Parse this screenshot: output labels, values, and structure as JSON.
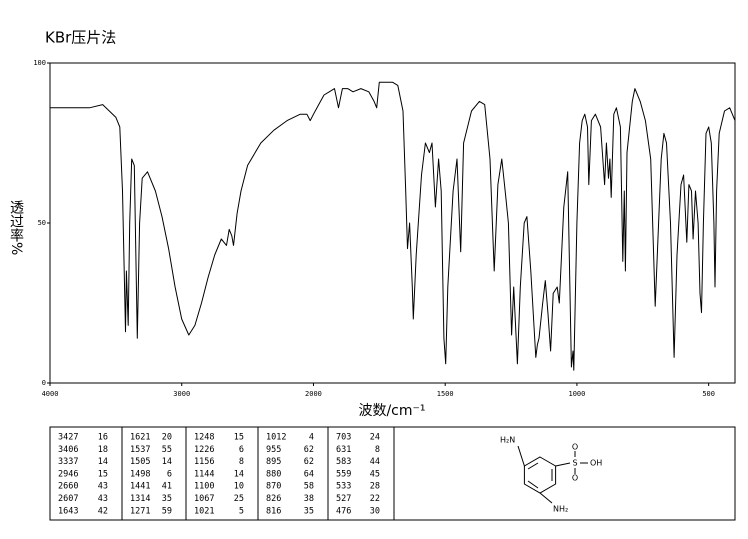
{
  "chart_data": {
    "type": "line",
    "title": "KBr压片法",
    "xlabel": "波数/cm⁻¹",
    "ylabel": "透过率%",
    "xlim": [
      4000,
      400
    ],
    "xticks": [
      4000,
      3000,
      2000,
      1500,
      1000,
      500
    ],
    "ylim": [
      0,
      100
    ],
    "yticks": [
      0,
      50,
      100
    ],
    "x": [
      4000,
      3900,
      3700,
      3600,
      3500,
      3470,
      3450,
      3427,
      3420,
      3406,
      3395,
      3380,
      3360,
      3337,
      3320,
      3300,
      3260,
      3200,
      3150,
      3100,
      3050,
      3000,
      2946,
      2900,
      2850,
      2800,
      2750,
      2700,
      2660,
      2640,
      2620,
      2607,
      2580,
      2550,
      2500,
      2400,
      2300,
      2200,
      2100,
      2050,
      2025,
      2000,
      1980,
      1960,
      1940,
      1920,
      1905,
      1890,
      1870,
      1850,
      1820,
      1790,
      1770,
      1760,
      1750,
      1720,
      1700,
      1680,
      1660,
      1650,
      1643,
      1635,
      1625,
      1621,
      1610,
      1590,
      1575,
      1560,
      1550,
      1537,
      1525,
      1515,
      1505,
      1498,
      1490,
      1470,
      1455,
      1441,
      1430,
      1400,
      1370,
      1350,
      1330,
      1314,
      1300,
      1285,
      1271,
      1260,
      1248,
      1240,
      1226,
      1215,
      1200,
      1190,
      1175,
      1156,
      1150,
      1144,
      1130,
      1120,
      1110,
      1100,
      1090,
      1075,
      1067,
      1050,
      1035,
      1021,
      1015,
      1012,
      1000,
      990,
      980,
      970,
      960,
      955,
      945,
      930,
      910,
      895,
      888,
      880,
      875,
      870,
      860,
      850,
      835,
      826,
      820,
      816,
      810,
      790,
      780,
      760,
      740,
      720,
      703,
      695,
      680,
      670,
      660,
      645,
      631,
      620,
      605,
      595,
      583,
      575,
      565,
      559,
      550,
      540,
      533,
      527,
      520,
      510,
      500,
      490,
      480,
      476,
      470,
      460,
      440,
      420,
      400
    ],
    "series": [
      {
        "name": "transmittance",
        "color": "#000000",
        "values": [
          86,
          86,
          86,
          87,
          83,
          80,
          60,
          16,
          35,
          18,
          50,
          70,
          68,
          14,
          50,
          64,
          66,
          60,
          52,
          42,
          30,
          20,
          15,
          18,
          25,
          33,
          40,
          45,
          43,
          48,
          46,
          43,
          53,
          60,
          68,
          75,
          79,
          82,
          84,
          84,
          82,
          84,
          87,
          90,
          91,
          92,
          86,
          92,
          92,
          91,
          92,
          91,
          88,
          86,
          94,
          94,
          94,
          93,
          85,
          60,
          42,
          50,
          30,
          20,
          40,
          65,
          75,
          72,
          75,
          55,
          70,
          60,
          14,
          6,
          30,
          60,
          70,
          41,
          75,
          85,
          88,
          87,
          70,
          35,
          62,
          70,
          59,
          50,
          15,
          30,
          6,
          30,
          50,
          52,
          35,
          8,
          12,
          14,
          25,
          32,
          22,
          10,
          28,
          30,
          25,
          55,
          66,
          5,
          10,
          4,
          50,
          75,
          82,
          84,
          80,
          62,
          82,
          84,
          80,
          62,
          75,
          64,
          70,
          58,
          84,
          86,
          80,
          38,
          60,
          35,
          72,
          88,
          92,
          88,
          82,
          70,
          24,
          40,
          70,
          78,
          75,
          50,
          8,
          40,
          62,
          65,
          44,
          62,
          60,
          45,
          60,
          50,
          28,
          22,
          50,
          78,
          80,
          75,
          50,
          30,
          60,
          78,
          85,
          86,
          82
        ]
      }
    ],
    "peak_table": [
      [
        [
          3427,
          16
        ],
        [
          3406,
          18
        ],
        [
          3337,
          14
        ],
        [
          2946,
          15
        ],
        [
          2660,
          43
        ],
        [
          2607,
          43
        ],
        [
          1643,
          42
        ]
      ],
      [
        [
          1621,
          20
        ],
        [
          1537,
          55
        ],
        [
          1505,
          14
        ],
        [
          1498,
          6
        ],
        [
          1441,
          41
        ],
        [
          1314,
          35
        ],
        [
          1271,
          59
        ]
      ],
      [
        [
          1248,
          15
        ],
        [
          1226,
          6
        ],
        [
          1156,
          8
        ],
        [
          1144,
          14
        ],
        [
          1100,
          10
        ],
        [
          1067,
          25
        ],
        [
          1021,
          5
        ]
      ],
      [
        [
          1012,
          4
        ],
        [
          955,
          62
        ],
        [
          895,
          62
        ],
        [
          880,
          64
        ],
        [
          870,
          58
        ],
        [
          826,
          38
        ],
        [
          816,
          35
        ]
      ],
      [
        [
          703,
          24
        ],
        [
          631,
          8
        ],
        [
          583,
          44
        ],
        [
          559,
          45
        ],
        [
          533,
          28
        ],
        [
          527,
          22
        ],
        [
          476,
          30
        ]
      ]
    ],
    "structure": {
      "labels": [
        "H₂N",
        "S",
        "O",
        "O",
        "OH",
        "NH₂"
      ]
    }
  }
}
